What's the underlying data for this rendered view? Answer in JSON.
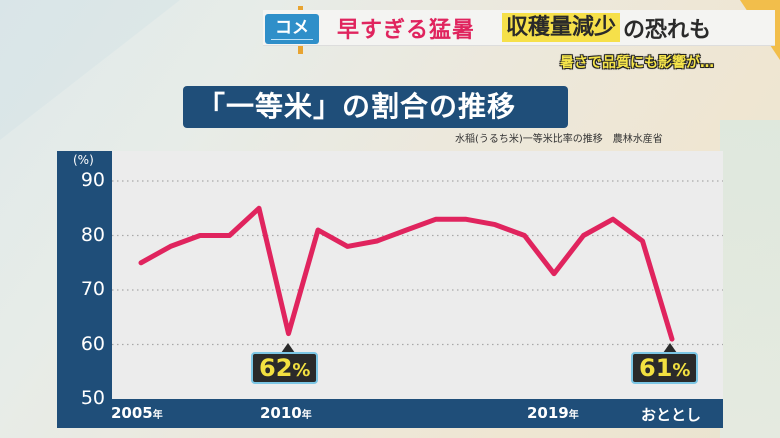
{
  "header": {
    "category_tag": "コメ",
    "headline_red": "早すぎる猛暑",
    "headline_highlight": "収穫量減少",
    "headline_tail": "の恐れも",
    "subheadline": "暑さで品質にも影響が…"
  },
  "chart": {
    "title": "「一等米」の割合の推移",
    "source": "水稲(うるち米)一等米比率の推移　農林水産省",
    "y_unit": "(%)",
    "y_ticks": [
      "90",
      "80",
      "70",
      "60",
      "50"
    ],
    "x_ticks": [
      {
        "label": "2005",
        "suffix": "年"
      },
      {
        "label": "2010",
        "suffix": "年"
      },
      {
        "label": "2019",
        "suffix": "年"
      },
      {
        "label": "おととし",
        "suffix": ""
      }
    ],
    "callouts": [
      {
        "value": "62",
        "unit": "%"
      },
      {
        "value": "61",
        "unit": "%"
      }
    ]
  },
  "chart_data": {
    "type": "line",
    "title": "「一等米」の割合の推移",
    "subtitle": "水稲(うるち米)一等米比率の推移　農林水産省",
    "xlabel": "",
    "ylabel": "(%)",
    "ylim": [
      50,
      90
    ],
    "yticks": [
      50,
      60,
      70,
      80,
      90
    ],
    "grid": true,
    "x": [
      "2005",
      "2006",
      "2007",
      "2008",
      "2009",
      "2010",
      "2011",
      "2012",
      "2013",
      "2014",
      "2015",
      "2016",
      "2017",
      "2018",
      "2019",
      "2020",
      "2021",
      "2022",
      "おととし"
    ],
    "x_tick_labels": [
      "2005年",
      "2010年",
      "2019年",
      "おととし"
    ],
    "series": [
      {
        "name": "一等米比率",
        "color": "#e0245e",
        "values": [
          75,
          78,
          80,
          80,
          85,
          62,
          81,
          78,
          79,
          81,
          83,
          83,
          82,
          80,
          73,
          80,
          83,
          79,
          61
        ]
      }
    ],
    "annotations": [
      {
        "x": "2010",
        "text": "62%"
      },
      {
        "x": "おととし",
        "text": "61%"
      }
    ]
  },
  "colors": {
    "line": "#e0245e",
    "frame": "#1f4e79",
    "plot_bg": "#ececec",
    "callout_text": "#f2e040",
    "tag": "#2f8fc9",
    "highlight": "#f6e04a"
  }
}
